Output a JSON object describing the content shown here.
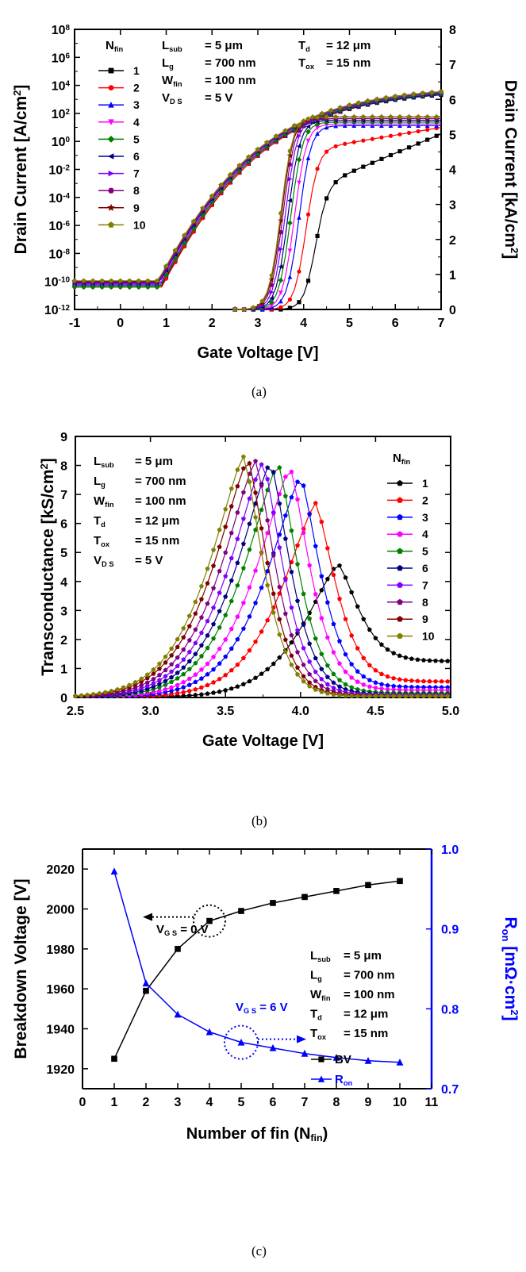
{
  "colors": {
    "series": [
      "#000000",
      "#ff0000",
      "#0000ff",
      "#ff00ff",
      "#008000",
      "#000080",
      "#8000ff",
      "#800080",
      "#800000",
      "#808000"
    ],
    "bv": "#000000",
    "ron": "#0000ff"
  },
  "captions": {
    "a": "(a)",
    "b": "(b)",
    "c": "(c)"
  },
  "panel_a_text": {
    "nfin_head": "N",
    "nfin_sub": "fin",
    "params": [
      {
        "name": "L",
        "sub": "sub",
        "val": "= 5 μm"
      },
      {
        "name": "L",
        "sub": "g",
        "val": "= 700 nm"
      },
      {
        "name": "W",
        "sub": "fin",
        "val": "= 100 nm"
      },
      {
        "name": "V",
        "sub": "D S",
        "val": "= 5 V"
      }
    ],
    "params_right": [
      {
        "name": "T",
        "sub": "d",
        "val": "= 12 μm"
      },
      {
        "name": "T",
        "sub": "ox",
        "val": "= 15 nm"
      }
    ],
    "ylabel_left": "Drain Current [A/cm",
    "ylabel_left_sup": "2",
    "ylabel_right": "Drain Current [kA/cm",
    "ylabel_right_sup": "2"
  },
  "panel_b_text": {
    "nfin_head": "N",
    "nfin_sub": "fin",
    "params": [
      {
        "name": "L",
        "sub": "sub",
        "val": "= 5 μm"
      },
      {
        "name": "L",
        "sub": "g",
        "val": "= 700 nm"
      },
      {
        "name": "W",
        "sub": "fin",
        "val": "= 100 nm"
      },
      {
        "name": "T",
        "sub": "d",
        "val": "= 12 μm"
      },
      {
        "name": "T",
        "sub": "ox",
        "val": "= 15 nm"
      },
      {
        "name": "V",
        "sub": "D S",
        "val": "= 5 V"
      }
    ],
    "ylabel": "Transconductance [kS/cm",
    "ylabel_sup": "2"
  },
  "panel_c_text": {
    "vgs0": {
      "name": "V",
      "sub": "G S",
      "val": " = 0 V"
    },
    "vgs6": {
      "name": "V",
      "sub": "G S",
      "val": " = 6 V"
    },
    "params": [
      {
        "name": "L",
        "sub": "sub",
        "val": "= 5 μm"
      },
      {
        "name": "L",
        "sub": "g",
        "val": "= 700 nm"
      },
      {
        "name": "W",
        "sub": "fin",
        "val": "= 100 nm"
      },
      {
        "name": "T",
        "sub": "d",
        "val": "= 12 μm"
      },
      {
        "name": "T",
        "sub": "ox",
        "val": "= 15 nm"
      }
    ],
    "legend_bv": "BV",
    "legend_ron": "R",
    "legend_ron_sub": "on",
    "xlabel": "Number of fin (N",
    "xlabel_sub": "fin",
    "xlabel_end": ")",
    "ylabel_right": "R",
    "ylabel_right_sub": "on",
    "ylabel_right_rest": " [mΩ·cm",
    "ylabel_right_sup": "2",
    "ylabel_right_end": "]"
  },
  "chart_data": [
    {
      "type": "line",
      "xlabel": "Gate Voltage [V]",
      "ylabel": "Drain Current [A/cm2]",
      "y2label": "Drain Current [kA/cm2]",
      "xlim": [
        -1,
        7
      ],
      "ylim_log": [
        1e-12,
        100000000.0
      ],
      "y2lim": [
        0,
        8
      ],
      "xticks": [
        "-1",
        "0",
        "1",
        "2",
        "3",
        "4",
        "5",
        "6",
        "7"
      ],
      "yticks_exp": [
        -12,
        -10,
        -8,
        -6,
        -4,
        -2,
        0,
        2,
        4,
        6,
        8
      ],
      "yticks_base": "10",
      "y2ticks": [
        "0",
        "1",
        "2",
        "3",
        "4",
        "5",
        "6",
        "7",
        "8"
      ],
      "legend_title": "Nfin",
      "series_names": [
        "1",
        "2",
        "3",
        "4",
        "5",
        "6",
        "7",
        "8",
        "9",
        "10"
      ],
      "log_curves": {
        "description_free": true,
        "v_on": [
          0.9,
          0.9,
          0.88,
          0.87,
          0.86,
          0.85,
          0.84,
          0.83,
          0.82,
          0.82
        ],
        "i_off_exp": [
          -10.3,
          -10.4,
          -10.2,
          -10.15,
          -10.4,
          -10.1,
          -10.05,
          -10.0,
          -10.0,
          -9.95
        ],
        "i_sat_exp": [
          3.7,
          3.75,
          3.75,
          3.8,
          3.8,
          3.85,
          3.85,
          3.9,
          3.9,
          3.9
        ]
      },
      "lin_curves": {
        "v_th": [
          4.25,
          4.05,
          3.9,
          3.8,
          3.72,
          3.66,
          3.6,
          3.55,
          3.52,
          3.5
        ],
        "i_max_kA": [
          4.8,
          5.05,
          5.25,
          5.3,
          5.35,
          5.4,
          5.45,
          5.45,
          5.5,
          5.5
        ]
      }
    },
    {
      "type": "line",
      "xlabel": "Gate Voltage [V]",
      "ylabel": "Transconductance [kS/cm2]",
      "xlim": [
        2.5,
        5.0
      ],
      "ylim": [
        0,
        9
      ],
      "xticks": [
        "2.5",
        "3.0",
        "3.5",
        "4.0",
        "4.5",
        "5.0"
      ],
      "yticks": [
        "0",
        "1",
        "2",
        "3",
        "4",
        "5",
        "6",
        "7",
        "8",
        "9"
      ],
      "legend_title": "Nfin",
      "series_names": [
        "1",
        "2",
        "3",
        "4",
        "5",
        "6",
        "7",
        "8",
        "9",
        "10"
      ],
      "peaks": [
        {
          "x": 4.25,
          "y": 4.6,
          "tail": 1.25
        },
        {
          "x": 4.1,
          "y": 6.7,
          "tail": 0.55
        },
        {
          "x": 4.0,
          "y": 7.6,
          "tail": 0.35
        },
        {
          "x": 3.93,
          "y": 7.9,
          "tail": 0.25
        },
        {
          "x": 3.85,
          "y": 8.05,
          "tail": 0.15
        },
        {
          "x": 3.8,
          "y": 8.1,
          "tail": 0.1
        },
        {
          "x": 3.75,
          "y": 8.1,
          "tail": 0.08
        },
        {
          "x": 3.7,
          "y": 8.15,
          "tail": 0.06
        },
        {
          "x": 3.65,
          "y": 8.2,
          "tail": 0.05
        },
        {
          "x": 3.62,
          "y": 8.3,
          "tail": 0.04
        }
      ]
    },
    {
      "type": "line",
      "xlabel": "Number of fin (Nfin)",
      "ylabel": "Breakdown Voltage [V]",
      "y2label": "Ron [mΩ·cm2]",
      "xlim": [
        0,
        11
      ],
      "ylim": [
        1910,
        2030
      ],
      "y2lim": [
        0.7,
        1.0
      ],
      "xticks": [
        "0",
        "1",
        "2",
        "3",
        "4",
        "5",
        "6",
        "7",
        "8",
        "9",
        "10",
        "11"
      ],
      "yticks": [
        "1920",
        "1940",
        "1960",
        "1980",
        "2000",
        "2020"
      ],
      "y2ticks": [
        "0.7",
        "0.8",
        "0.9",
        "1.0"
      ],
      "x": [
        1,
        2,
        3,
        4,
        5,
        6,
        7,
        8,
        9,
        10
      ],
      "series": [
        {
          "name": "BV",
          "values": [
            1925,
            1959,
            1980,
            1994,
            1999,
            2003,
            2006,
            2009,
            2012,
            2014
          ]
        },
        {
          "name": "Ron",
          "values": [
            0.972,
            0.832,
            0.793,
            0.771,
            0.758,
            0.751,
            0.744,
            0.739,
            0.735,
            0.733
          ]
        }
      ]
    }
  ]
}
